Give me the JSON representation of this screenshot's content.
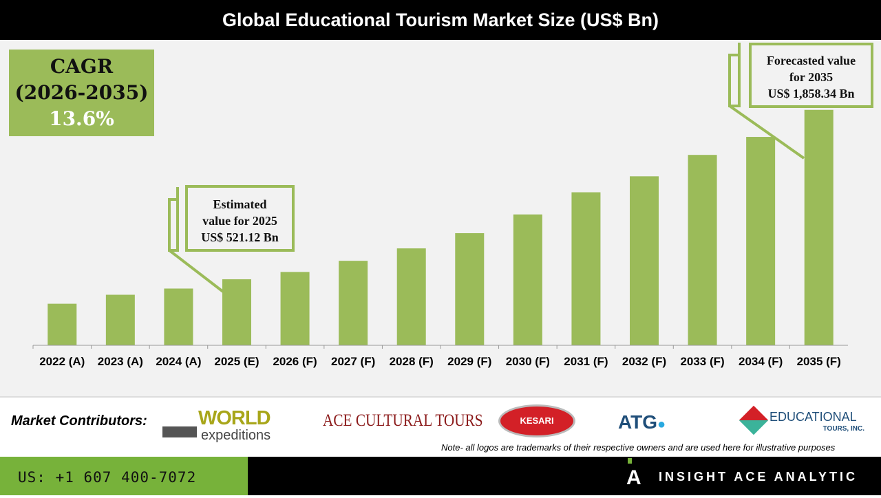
{
  "chart_data": {
    "type": "bar",
    "title": "Global Educational Tourism Market Size (US$ Bn)",
    "categories": [
      "2022 (A)",
      "2023 (A)",
      "2024 (A)",
      "2025 (E)",
      "2026 (F)",
      "2027 (F)",
      "2028 (F)",
      "2029 (F)",
      "2030 (F)",
      "2031 (F)",
      "2032 (F)",
      "2033 (F)",
      "2034 (F)",
      "2035 (F)"
    ],
    "values": [
      328,
      399,
      448,
      521.12,
      579,
      667,
      765,
      885,
      1033,
      1208,
      1334,
      1503,
      1645,
      1858.34
    ],
    "ylim": [
      0,
      2400
    ],
    "grid": false,
    "bar_color": "#9bbb59"
  },
  "cagr": {
    "label": "CAGR",
    "period": "(2026-2035)",
    "value": "13.6%"
  },
  "callout_2025": {
    "line1": "Estimated",
    "line2": "value for 2025",
    "line3": "US$ 521.12 Bn"
  },
  "callout_2035": {
    "line1": "Forecasted value",
    "line2": "for 2035",
    "line3": "US$ 1,858.34 Bn"
  },
  "contributors": {
    "label": "Market Contributors:",
    "logos": [
      "WORLD expeditions",
      "ACE CULTURAL TOURS",
      "KESARI",
      "ATG",
      "EDUCATIONAL TOURS, INC."
    ]
  },
  "note": "Note- all logos are trademarks of their respective owners and are used here for illustrative purposes",
  "footer": {
    "phone": "US: +1 607 400-7072",
    "brand": "INSIGHT ACE ANALYTIC"
  }
}
